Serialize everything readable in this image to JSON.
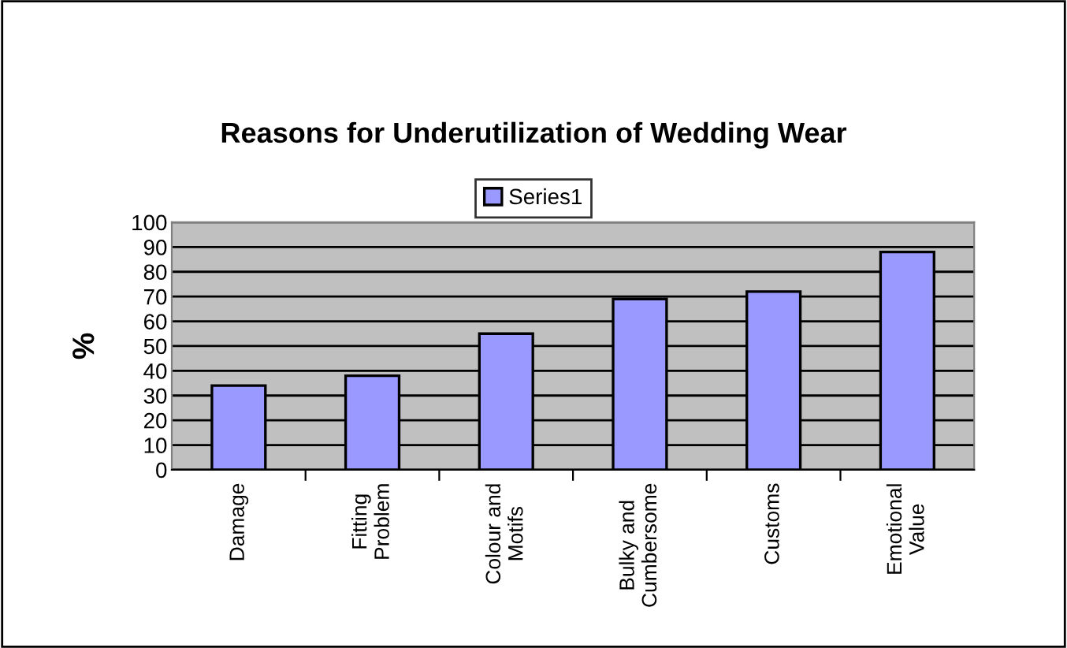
{
  "chart_data": {
    "type": "bar",
    "title": "Reasons for Underutilization of Wedding Wear",
    "ylabel": "%",
    "categories": [
      "Damage",
      "Fitting\nProblem",
      "Colour and\nMotifs",
      "Bulky and\nCumbersome",
      "Customs",
      "Emotional\nValue"
    ],
    "series": [
      {
        "name": "Series1",
        "color": "#9999ff",
        "values": [
          34,
          38,
          55,
          69,
          72,
          88
        ]
      }
    ],
    "ylim": [
      0,
      100
    ],
    "yticks": [
      0,
      10,
      20,
      30,
      40,
      50,
      60,
      70,
      80,
      90,
      100
    ],
    "grid": "y",
    "legend": "top"
  }
}
